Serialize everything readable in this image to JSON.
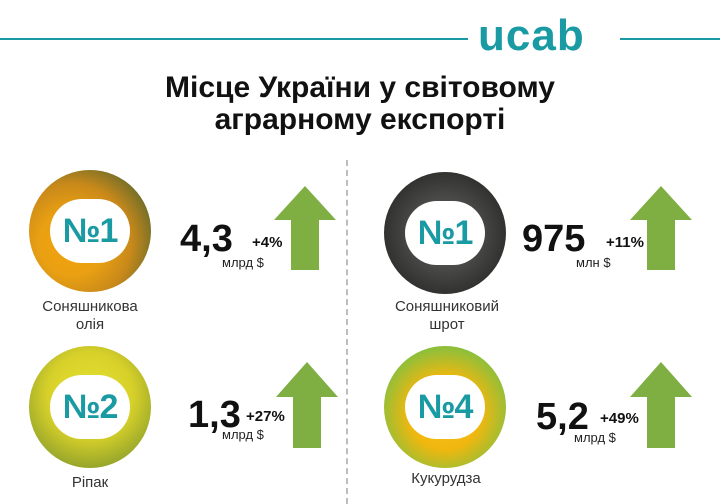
{
  "header": {
    "logo": "ucab",
    "title_line1": "Місце України у світовому",
    "title_line2": "аграрному експорті"
  },
  "colors": {
    "accent": "#1a9aa3",
    "arrow": "#7fae43"
  },
  "items": [
    {
      "id": "sunflower-oil",
      "rank": "№1",
      "label_line1": "Соняшникова",
      "label_line2": "олія",
      "value": "4,3",
      "unit": "млрд $",
      "change": "+4%"
    },
    {
      "id": "sunflower-meal",
      "rank": "№1",
      "label_line1": "Соняшниковий",
      "label_line2": "шрот",
      "value": "975",
      "unit": "млн $",
      "change": "+11%"
    },
    {
      "id": "rapeseed",
      "rank": "№2",
      "label_line1": "Ріпак",
      "label_line2": "",
      "value": "1,3",
      "unit": "млрд $",
      "change": "+27%"
    },
    {
      "id": "corn",
      "rank": "№4",
      "label_line1": "Кукурудза",
      "label_line2": "",
      "value": "5,2",
      "unit": "млрд $",
      "change": "+49%"
    }
  ]
}
